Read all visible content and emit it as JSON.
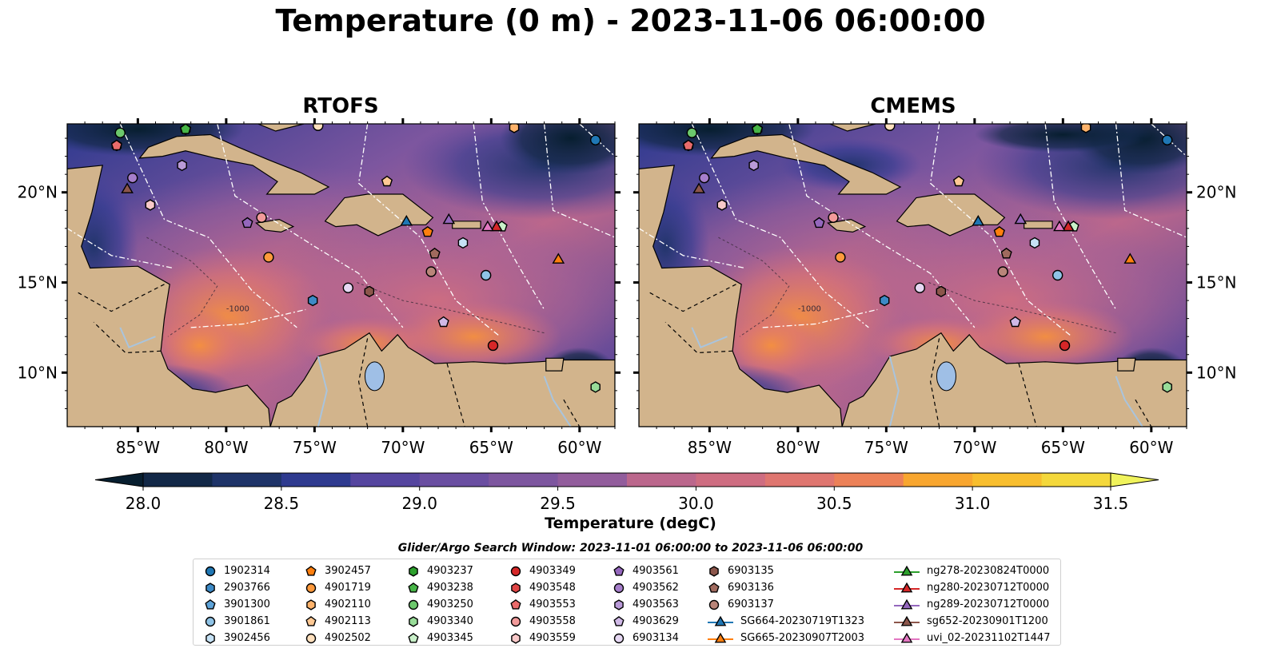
{
  "title": "Temperature (0 m) - 2023-11-06 06:00:00",
  "panels": [
    {
      "title": "RTOFS"
    },
    {
      "title": "CMEMS"
    }
  ],
  "map": {
    "lon_range": [
      -89,
      -58
    ],
    "lat_range": [
      7,
      23.8
    ],
    "x_ticks": [
      "85°W",
      "80°W",
      "75°W",
      "70°W",
      "65°W",
      "60°W"
    ],
    "y_ticks": [
      "20°N",
      "15°N",
      "10°N"
    ],
    "land_color": "#d2b48c",
    "contour_label": "-1000"
  },
  "colorbar": {
    "label": "Temperature (degC)",
    "ticks": [
      "28.0",
      "28.5",
      "29.0",
      "29.5",
      "30.0",
      "30.5",
      "31.0",
      "31.5"
    ],
    "range": [
      28.0,
      31.5
    ],
    "extend": "both"
  },
  "legend": {
    "title": "Glider/Argo Search Window: 2023-11-01 06:00:00 to 2023-11-06 06:00:00",
    "columns": [
      [
        {
          "label": "1902314",
          "marker": "circle",
          "color": "#1f77b4"
        },
        {
          "label": "2903766",
          "marker": "hexagon",
          "color": "#3d8ac6"
        },
        {
          "label": "3901300",
          "marker": "pentagon",
          "color": "#5ea3d8"
        },
        {
          "label": "3901861",
          "marker": "circle",
          "color": "#8fc3e6"
        },
        {
          "label": "3902456",
          "marker": "hexagon",
          "color": "#c6e2f5"
        }
      ],
      [
        {
          "label": "3902457",
          "marker": "pentagon",
          "color": "#ff7f0e"
        },
        {
          "label": "4901719",
          "marker": "circle",
          "color": "#ff9a3c"
        },
        {
          "label": "4902110",
          "marker": "hexagon",
          "color": "#ffb36b"
        },
        {
          "label": "4902113",
          "marker": "pentagon",
          "color": "#ffc994"
        },
        {
          "label": "4902502",
          "marker": "circle",
          "color": "#ffe0bd"
        }
      ],
      [
        {
          "label": "4903237",
          "marker": "hexagon",
          "color": "#2ca02c"
        },
        {
          "label": "4903238",
          "marker": "pentagon",
          "color": "#47b547"
        },
        {
          "label": "4903250",
          "marker": "circle",
          "color": "#6cc86c"
        },
        {
          "label": "4903340",
          "marker": "hexagon",
          "color": "#98dc98"
        },
        {
          "label": "4903345",
          "marker": "pentagon",
          "color": "#c9f0c9"
        }
      ],
      [
        {
          "label": "4903349",
          "marker": "circle",
          "color": "#d62728"
        },
        {
          "label": "4903548",
          "marker": "hexagon",
          "color": "#e04545"
        },
        {
          "label": "4903553",
          "marker": "pentagon",
          "color": "#ea6b6b"
        },
        {
          "label": "4903558",
          "marker": "circle",
          "color": "#f29a9a"
        },
        {
          "label": "4903559",
          "marker": "hexagon",
          "color": "#f8c8c8"
        }
      ],
      [
        {
          "label": "4903561",
          "marker": "pentagon",
          "color": "#9467bd"
        },
        {
          "label": "4903562",
          "marker": "circle",
          "color": "#a67ecb"
        },
        {
          "label": "4903563",
          "marker": "hexagon",
          "color": "#b99ad8"
        },
        {
          "label": "4903629",
          "marker": "pentagon",
          "color": "#d0b9e7"
        },
        {
          "label": "6903134",
          "marker": "circle",
          "color": "#e6d8f3"
        }
      ],
      [
        {
          "label": "6903135",
          "marker": "hexagon",
          "color": "#8c564b"
        },
        {
          "label": "6903136",
          "marker": "pentagon",
          "color": "#a06a5e"
        },
        {
          "label": "6903137",
          "marker": "circle",
          "color": "#b98579"
        },
        {
          "label": "SG664-20230719T1323",
          "marker": "line-triangle",
          "color": "#1f77b4"
        },
        {
          "label": "SG665-20230907T2003",
          "marker": "line-triangle",
          "color": "#ff7f0e"
        }
      ],
      [
        {
          "label": "ng278-20230824T0000",
          "marker": "line-triangle",
          "color": "#2ca02c"
        },
        {
          "label": "ng280-20230712T0000",
          "marker": "line-triangle",
          "color": "#d62728"
        },
        {
          "label": "ng289-20230712T0000",
          "marker": "line-triangle",
          "color": "#9467bd"
        },
        {
          "label": "sg652-20230901T1200",
          "marker": "line-triangle",
          "color": "#8c564b"
        },
        {
          "label": "uvi_02-20231102T1447",
          "marker": "line-triangle",
          "color": "#e377c2"
        }
      ]
    ]
  },
  "platforms": [
    {
      "id": "1902314",
      "lon": -59.1,
      "lat": 22.9
    },
    {
      "id": "2903766",
      "lon": -75.1,
      "lat": 14.0
    },
    {
      "id": "3901300",
      "lon": -82.3,
      "lat": 23.5
    },
    {
      "id": "3901861",
      "lon": -65.3,
      "lat": 15.4
    },
    {
      "id": "3902456",
      "lon": -66.6,
      "lat": 17.2
    },
    {
      "id": "3902457",
      "lon": -68.6,
      "lat": 17.8
    },
    {
      "id": "4901719",
      "lon": -77.6,
      "lat": 16.4
    },
    {
      "id": "4902110",
      "lon": -63.7,
      "lat": 23.6
    },
    {
      "id": "4902113",
      "lon": -70.9,
      "lat": 20.6
    },
    {
      "id": "4902502",
      "lon": -74.8,
      "lat": 23.7
    },
    {
      "id": "4903237",
      "lon": -82.3,
      "lat": 23.5
    },
    {
      "id": "4903238",
      "lon": -82.3,
      "lat": 23.5
    },
    {
      "id": "4903250",
      "lon": -86.0,
      "lat": 23.3
    },
    {
      "id": "4903340",
      "lon": -59.1,
      "lat": 9.2
    },
    {
      "id": "4903345",
      "lon": -64.4,
      "lat": 18.1
    },
    {
      "id": "4903349",
      "lon": -64.9,
      "lat": 11.5
    },
    {
      "id": "4903548",
      "lon": -86.2,
      "lat": 22.6
    },
    {
      "id": "4903553",
      "lon": -86.2,
      "lat": 22.6
    },
    {
      "id": "4903558",
      "lon": -78.0,
      "lat": 18.6
    },
    {
      "id": "4903559",
      "lon": -84.3,
      "lat": 19.3
    },
    {
      "id": "4903561",
      "lon": -78.8,
      "lat": 18.3
    },
    {
      "id": "4903562",
      "lon": -85.3,
      "lat": 20.8
    },
    {
      "id": "4903563",
      "lon": -82.5,
      "lat": 21.5
    },
    {
      "id": "4903629",
      "lon": -67.7,
      "lat": 12.8
    },
    {
      "id": "6903134",
      "lon": -73.1,
      "lat": 14.7
    },
    {
      "id": "6903135",
      "lon": -71.9,
      "lat": 14.5
    },
    {
      "id": "6903136",
      "lon": -68.2,
      "lat": 16.6
    },
    {
      "id": "6903137",
      "lon": -68.4,
      "lat": 15.6
    },
    {
      "id": "SG664-20230719T1323",
      "lon": -69.8,
      "lat": 18.4
    },
    {
      "id": "SG665-20230907T2003",
      "lon": -61.2,
      "lat": 16.3
    },
    {
      "id": "ng278-20230824T0000",
      "lon": -64.7,
      "lat": 18.1
    },
    {
      "id": "ng280-20230712T0000",
      "lon": -64.7,
      "lat": 18.1
    },
    {
      "id": "ng289-20230712T0000",
      "lon": -67.4,
      "lat": 18.5
    },
    {
      "id": "sg652-20230901T1200",
      "lon": -85.6,
      "lat": 20.2
    },
    {
      "id": "uvi_02-20231102T1447",
      "lon": -65.2,
      "lat": 18.1
    }
  ],
  "colors": {
    "land": "#d2b48c",
    "coast": "#000000",
    "eez": "#ffffff",
    "ramp": [
      "#071e2f",
      "#122847",
      "#1e3368",
      "#2e3a8f",
      "#413f9e",
      "#55459f",
      "#6a4ea1",
      "#7d569f",
      "#925d9c",
      "#a66296",
      "#bb678c",
      "#ce6d81",
      "#df7670",
      "#ec8158",
      "#f5903f",
      "#f8a62f",
      "#f8be2e",
      "#f4d83b",
      "#f0f35c"
    ]
  }
}
